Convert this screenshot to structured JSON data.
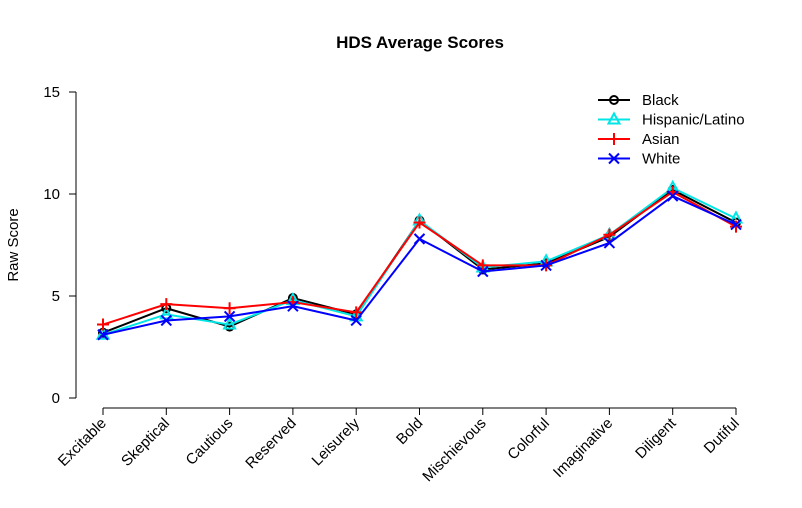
{
  "chart_data": {
    "type": "line",
    "title": "HDS Average Scores",
    "xlabel": "",
    "ylabel": "Raw Score",
    "ylim": [
      0,
      15
    ],
    "yticks": [
      0,
      5,
      10,
      15
    ],
    "categories": [
      "Excitable",
      "Skeptical",
      "Cautious",
      "Reserved",
      "Leisurely",
      "Bold",
      "Mischievous",
      "Colorful",
      "Imaginative",
      "Diligent",
      "Dutiful"
    ],
    "legend_position": "top-right",
    "grid": false,
    "series": [
      {
        "name": "Black",
        "color": "#000000",
        "marker": "circle",
        "values": [
          3.2,
          4.4,
          3.5,
          4.9,
          4.1,
          8.7,
          6.3,
          6.6,
          7.9,
          10.2,
          8.6
        ]
      },
      {
        "name": "Hispanic/Latino",
        "color": "#00e5e5",
        "marker": "triangle",
        "values": [
          3.1,
          4.1,
          3.6,
          4.8,
          4.0,
          8.7,
          6.4,
          6.7,
          8.0,
          10.3,
          8.8
        ]
      },
      {
        "name": "Asian",
        "color": "#ff0000",
        "marker": "plus",
        "values": [
          3.6,
          4.6,
          4.4,
          4.7,
          4.2,
          8.6,
          6.5,
          6.5,
          8.0,
          10.1,
          8.4
        ]
      },
      {
        "name": "White",
        "color": "#0000ff",
        "marker": "cross",
        "values": [
          3.1,
          3.8,
          4.0,
          4.5,
          3.8,
          7.8,
          6.2,
          6.5,
          7.6,
          9.9,
          8.5
        ]
      }
    ]
  }
}
